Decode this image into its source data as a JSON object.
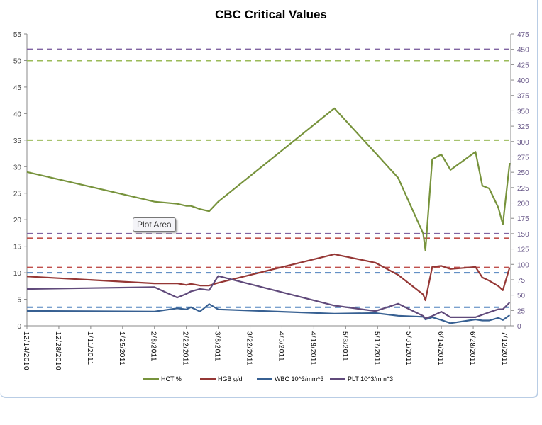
{
  "chart_data": {
    "type": "line",
    "title": "CBC Critical Values",
    "x_ticks": [
      "12/14/2010",
      "12/28/2010",
      "1/11/2011",
      "1/25/2011",
      "2/8/2011",
      "2/22/2011",
      "3/8/2011",
      "3/22/2011",
      "4/5/2011",
      "4/19/2011",
      "5/3/2011",
      "5/17/2011",
      "5/31/2011",
      "6/14/2011",
      "6/28/2011",
      "7/12/2011"
    ],
    "y_left": {
      "min": 0,
      "max": 55,
      "step": 5
    },
    "y_right": {
      "min": 0,
      "max": 475,
      "step": 25
    },
    "grid": false,
    "legend_position": "bottom",
    "x": [
      "2010-12-14",
      "2011-02-08",
      "2011-02-18",
      "2011-02-22",
      "2011-02-24",
      "2011-02-28",
      "2011-03-04",
      "2011-03-08",
      "2011-04-28",
      "2011-05-16",
      "2011-05-26",
      "2011-06-06",
      "2011-06-07",
      "2011-06-10",
      "2011-06-14",
      "2011-06-18",
      "2011-06-29",
      "2011-07-02",
      "2011-07-05",
      "2011-07-09",
      "2011-07-11",
      "2011-07-14"
    ],
    "series": [
      {
        "name": "HCT %",
        "axis": "left",
        "color": "#77933C",
        "values": [
          29.0,
          23.4,
          23.0,
          22.6,
          22.6,
          22.0,
          21.6,
          23.4,
          41.0,
          32.6,
          27.9,
          17.4,
          14.2,
          31.4,
          32.3,
          29.4,
          32.8,
          26.4,
          25.9,
          22.3,
          19.1,
          30.7
        ]
      },
      {
        "name": "HGB g/dl",
        "axis": "left",
        "color": "#953735",
        "values": [
          9.3,
          8.0,
          8.0,
          7.7,
          7.9,
          7.6,
          7.6,
          8.1,
          13.5,
          11.9,
          9.6,
          5.9,
          4.8,
          11.1,
          11.3,
          10.7,
          11.1,
          9.1,
          8.5,
          7.5,
          6.7,
          11.0
        ]
      },
      {
        "name": "WBC 10^3/mm^3",
        "axis": "left",
        "color": "#376092",
        "values": [
          2.8,
          2.7,
          3.3,
          3.1,
          3.5,
          2.7,
          4.1,
          3.1,
          2.3,
          2.4,
          1.9,
          1.7,
          1.2,
          1.6,
          1.1,
          0.5,
          1.2,
          1.0,
          1.0,
          1.5,
          1.1,
          2.0
        ]
      },
      {
        "name": "PLT 10^3/mm^3",
        "axis": "right",
        "color": "#604A7B",
        "values": [
          60,
          63,
          46,
          52,
          56,
          60,
          58,
          81,
          33,
          24,
          36,
          16,
          12,
          16,
          23,
          14,
          14,
          18,
          22,
          27,
          27,
          38
        ]
      }
    ],
    "reference_lines": [
      {
        "axis": "right",
        "value": 450,
        "color": "#8064A2"
      },
      {
        "axis": "left",
        "value": 50,
        "color": "#9BBB59"
      },
      {
        "axis": "left",
        "value": 35,
        "color": "#9BBB59"
      },
      {
        "axis": "right",
        "value": 150,
        "color": "#8064A2"
      },
      {
        "axis": "left",
        "value": 16.5,
        "color": "#C0504D"
      },
      {
        "axis": "left",
        "value": 11,
        "color": "#C0504D"
      },
      {
        "axis": "left",
        "value": 10,
        "color": "#4F81BD"
      },
      {
        "axis": "left",
        "value": 3.5,
        "color": "#4F81BD"
      }
    ]
  },
  "tooltip": "Plot Area"
}
